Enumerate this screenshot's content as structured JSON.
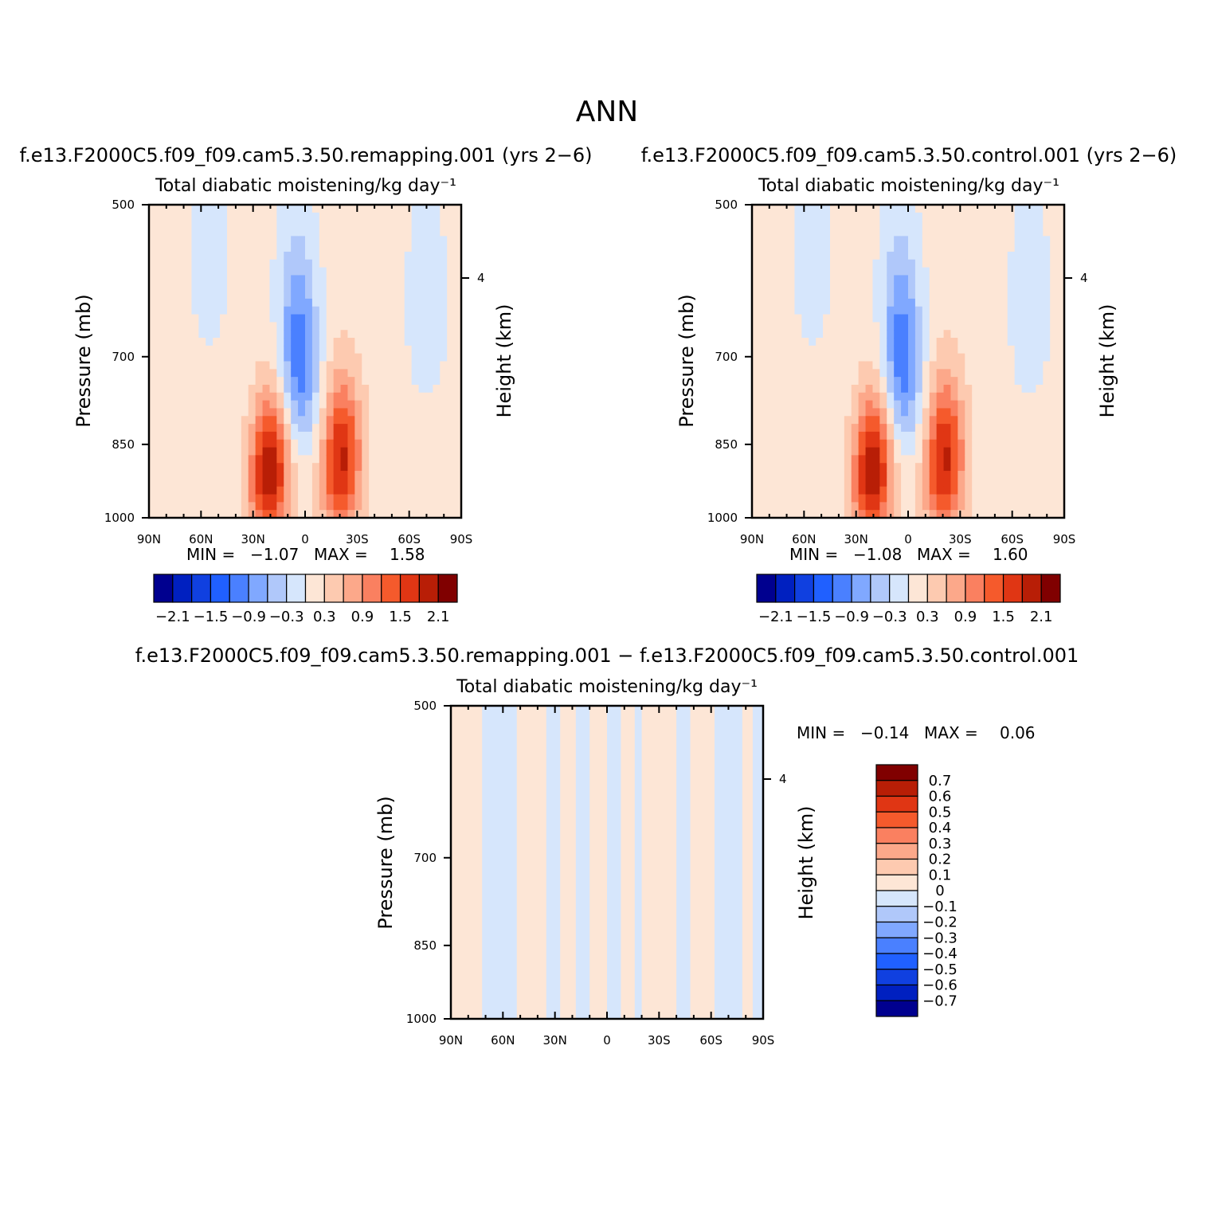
{
  "figure": {
    "title": "ANN"
  },
  "chart_data": [
    {
      "type": "heatmap",
      "title": "f.e13.F2000C5.f09_f09.cam5.3.50.remapping.001 (yrs 2−6)",
      "subtitle": "Total diabatic moistening/kg day⁻¹",
      "ylabel": "Pressure (mb)",
      "ylabel_right": "Height (km)",
      "xlabel": "",
      "x_ticks": [
        "90N",
        "60N",
        "30N",
        "0",
        "30S",
        "60S",
        "90S"
      ],
      "y_ticks": [
        "500",
        "700",
        "850",
        "1000"
      ],
      "y_right_ticks": [
        "4"
      ],
      "xlim": [
        90,
        -90
      ],
      "ylim": [
        1000,
        500
      ],
      "y_scale": "log",
      "stats": {
        "min_label": "MIN =",
        "min": "−1.07",
        "max_label": "MAX =",
        "max": "1.58"
      },
      "colorbar": {
        "orientation": "horizontal",
        "levels": [
          -2.1,
          -1.8,
          -1.5,
          -1.2,
          -0.9,
          -0.6,
          -0.3,
          0,
          0.3,
          0.6,
          0.9,
          1.2,
          1.5,
          1.8,
          2.1
        ],
        "tick_labels": [
          "−2.1",
          "−1.5",
          "−0.9",
          "−0.3",
          "0.3",
          "0.9",
          "1.5",
          "2.1"
        ]
      },
      "features": [
        {
          "lat": -20,
          "p": 920,
          "v": 1.1
        },
        {
          "lat": -22,
          "p": 830,
          "v": 0.9
        },
        {
          "lat": 22,
          "p": 930,
          "v": 1.3
        },
        {
          "lat": 18,
          "p": 860,
          "v": 0.9
        },
        {
          "lat": 3,
          "p": 730,
          "v": -1.0
        },
        {
          "lat": 5,
          "p": 620,
          "v": -0.5
        },
        {
          "lat": -70,
          "p": 620,
          "v": -0.4
        },
        {
          "lat": 55,
          "p": 560,
          "v": -0.3
        }
      ]
    },
    {
      "type": "heatmap",
      "title": "f.e13.F2000C5.f09_f09.cam5.3.50.control.001 (yrs 2−6)",
      "subtitle": "Total diabatic moistening/kg day⁻¹",
      "ylabel": "Pressure (mb)",
      "ylabel_right": "Height (km)",
      "xlabel": "",
      "x_ticks": [
        "90N",
        "60N",
        "30N",
        "0",
        "30S",
        "60S",
        "90S"
      ],
      "y_ticks": [
        "500",
        "700",
        "850",
        "1000"
      ],
      "y_right_ticks": [
        "4"
      ],
      "xlim": [
        90,
        -90
      ],
      "ylim": [
        1000,
        500
      ],
      "y_scale": "log",
      "stats": {
        "min_label": "MIN =",
        "min": "−1.08",
        "max_label": "MAX =",
        "max": "1.60"
      },
      "colorbar": {
        "orientation": "horizontal",
        "levels": [
          -2.1,
          -1.8,
          -1.5,
          -1.2,
          -0.9,
          -0.6,
          -0.3,
          0,
          0.3,
          0.6,
          0.9,
          1.2,
          1.5,
          1.8,
          2.1
        ],
        "tick_labels": [
          "−2.1",
          "−1.5",
          "−0.9",
          "−0.3",
          "0.3",
          "0.9",
          "1.5",
          "2.1"
        ]
      },
      "features": [
        {
          "lat": -20,
          "p": 920,
          "v": 1.1
        },
        {
          "lat": -22,
          "p": 830,
          "v": 0.9
        },
        {
          "lat": 22,
          "p": 930,
          "v": 1.3
        },
        {
          "lat": 18,
          "p": 860,
          "v": 0.9
        },
        {
          "lat": 3,
          "p": 730,
          "v": -1.0
        },
        {
          "lat": 5,
          "p": 620,
          "v": -0.5
        },
        {
          "lat": -70,
          "p": 620,
          "v": -0.4
        },
        {
          "lat": 55,
          "p": 560,
          "v": -0.3
        }
      ]
    },
    {
      "type": "heatmap",
      "title": "f.e13.F2000C5.f09_f09.cam5.3.50.remapping.001 − f.e13.F2000C5.f09_f09.cam5.3.50.control.001",
      "subtitle": "Total diabatic moistening/kg day⁻¹",
      "ylabel": "Pressure (mb)",
      "ylabel_right": "Height (km)",
      "xlabel": "",
      "x_ticks": [
        "90N",
        "60N",
        "30N",
        "0",
        "30S",
        "60S",
        "90S"
      ],
      "y_ticks": [
        "500",
        "700",
        "850",
        "1000"
      ],
      "y_right_ticks": [
        "4"
      ],
      "xlim": [
        90,
        -90
      ],
      "ylim": [
        1000,
        500
      ],
      "y_scale": "log",
      "stats": {
        "min_label": "MIN =",
        "min": "−0.14",
        "max_label": "MAX =",
        "max": "0.06"
      },
      "colorbar": {
        "orientation": "vertical",
        "levels": [
          -0.7,
          -0.6,
          -0.5,
          -0.4,
          -0.3,
          -0.2,
          -0.1,
          0,
          0.1,
          0.2,
          0.3,
          0.4,
          0.5,
          0.6,
          0.7
        ],
        "tick_labels": [
          "0.7",
          "0.6",
          "0.5",
          "0.4",
          "0.3",
          "0.2",
          "0.1",
          "0",
          "−0.1",
          "−0.2",
          "−0.3",
          "−0.4",
          "−0.5",
          "−0.6",
          "−0.7"
        ]
      },
      "sign_bands": [
        {
          "lat_from": 90,
          "lat_to": 72,
          "sign": 1
        },
        {
          "lat_from": 72,
          "lat_to": 52,
          "sign": -1
        },
        {
          "lat_from": 52,
          "lat_to": 35,
          "sign": 1
        },
        {
          "lat_from": 35,
          "lat_to": 27,
          "sign": -1
        },
        {
          "lat_from": 27,
          "lat_to": 18,
          "sign": 1
        },
        {
          "lat_from": 18,
          "lat_to": 10,
          "sign": -1
        },
        {
          "lat_from": 10,
          "lat_to": 0,
          "sign": 1
        },
        {
          "lat_from": 0,
          "lat_to": -8,
          "sign": -1
        },
        {
          "lat_from": -8,
          "lat_to": -16,
          "sign": 1
        },
        {
          "lat_from": -16,
          "lat_to": -20,
          "sign": -1
        },
        {
          "lat_from": -20,
          "lat_to": -40,
          "sign": 1
        },
        {
          "lat_from": -40,
          "lat_to": -48,
          "sign": -1
        },
        {
          "lat_from": -48,
          "lat_to": -62,
          "sign": 1
        },
        {
          "lat_from": -62,
          "lat_to": -78,
          "sign": -1
        },
        {
          "lat_from": -78,
          "lat_to": -84,
          "sign": 1
        },
        {
          "lat_from": -84,
          "lat_to": -90,
          "sign": -1
        }
      ]
    }
  ],
  "palette": [
    "#00008f",
    "#0020c0",
    "#1040e0",
    "#2060ff",
    "#4a80ff",
    "#80a8ff",
    "#b0c8fa",
    "#d6e6fc",
    "#fde6d6",
    "#fdcab0",
    "#fca88a",
    "#fa8060",
    "#f55a2c",
    "#e03614",
    "#b81e06",
    "#800000"
  ]
}
